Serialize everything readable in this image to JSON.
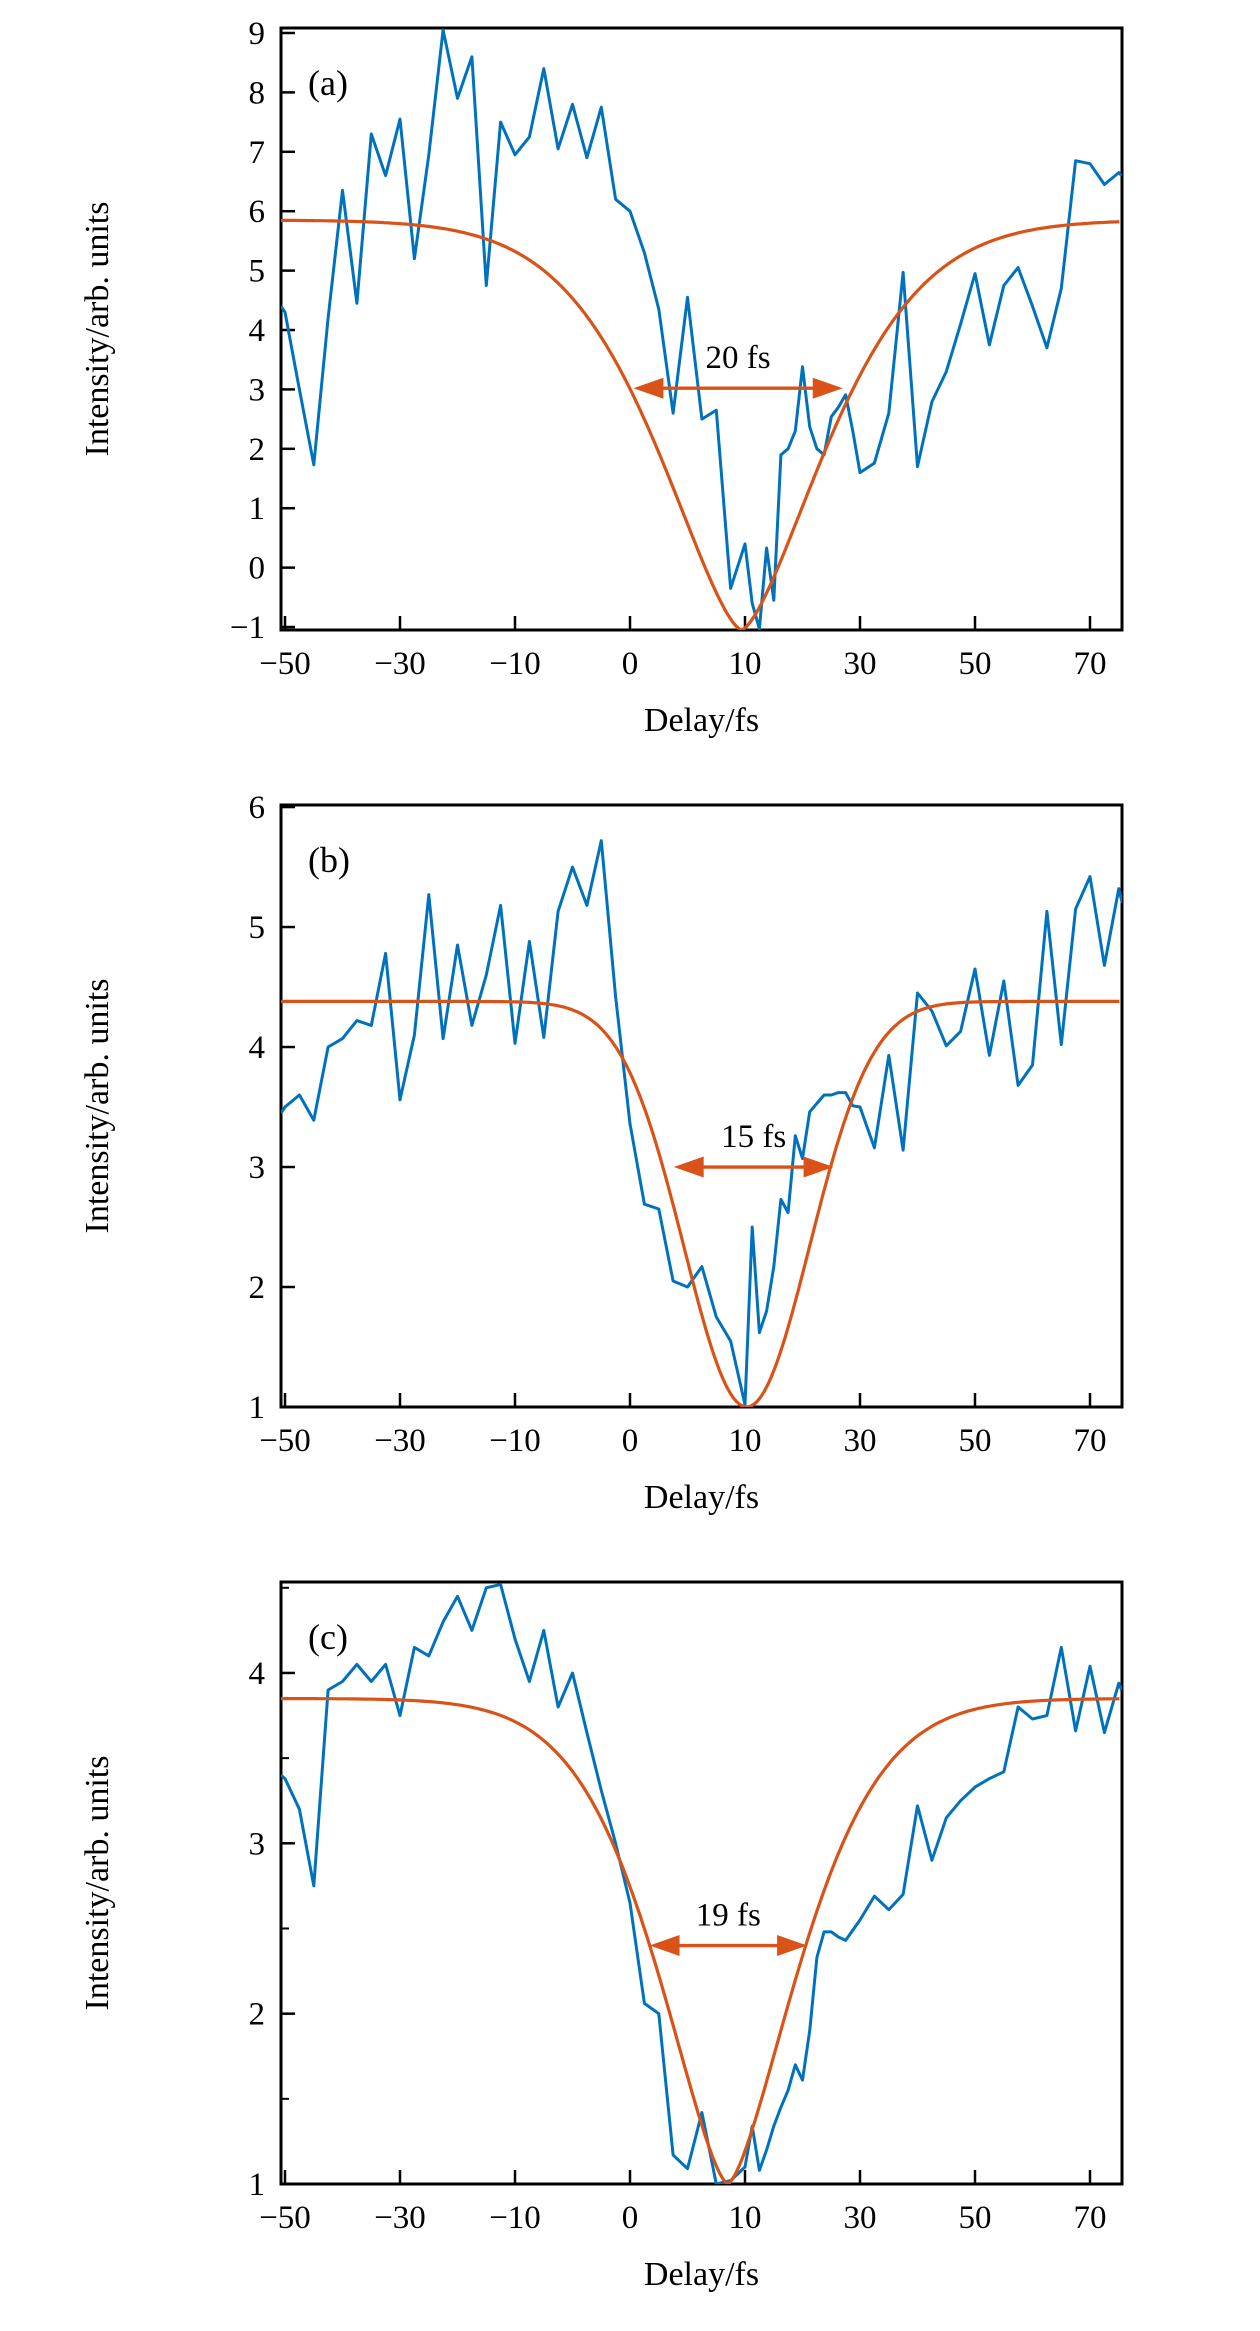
{
  "figure": {
    "type": "three-panel cross-correlation figure",
    "background": "#ffffff"
  },
  "colors": {
    "data_line": "#0072bd",
    "fit_line": "#d95319",
    "annotation": "#d95319",
    "axis": "#000000"
  },
  "x_axis": {
    "label": "Delay/fs",
    "tick_labels": [
      "−50",
      "−30",
      "−10",
      "0",
      "10",
      "30",
      "50",
      "70"
    ],
    "tick_values": [
      -50,
      -30,
      -10,
      0,
      10,
      30,
      50,
      70
    ],
    "note": "ticks equally spaced on axis",
    "range_fs": [
      -50.7,
      75.6
    ]
  },
  "chart_data": [
    {
      "id": "a",
      "type": "line",
      "panel_label": "(a)",
      "ylabel": "Intensity/arb. units",
      "xlabel": "Delay/fs",
      "ylim": [
        -1.05,
        9.084
      ],
      "y_ticks": {
        "labels": [
          "9",
          "8",
          "7",
          "6",
          "5",
          "4",
          "3",
          "2",
          "1",
          "0",
          "−1"
        ],
        "values": [
          9,
          8,
          7,
          6,
          5,
          4,
          3,
          2,
          1,
          0,
          -1
        ],
        "minor_values": []
      },
      "annotation": {
        "text": "20 fs",
        "level": 3.02,
        "from_fs": 0.3,
        "to_fs": 27.0
      },
      "series": [
        {
          "name": "measured signal",
          "color_key": "data_line",
          "points": [
            [
              -50.7,
              4.4
            ],
            [
              -50,
              4.3
            ],
            [
              -47.5,
              3.0
            ],
            [
              -45,
              1.73
            ],
            [
              -42.5,
              4.2
            ],
            [
              -40,
              6.35
            ],
            [
              -37.5,
              4.45
            ],
            [
              -35,
              7.3
            ],
            [
              -32.5,
              6.6
            ],
            [
              -30,
              7.55
            ],
            [
              -27.5,
              5.2
            ],
            [
              -25,
              6.95
            ],
            [
              -22.5,
              9.05
            ],
            [
              -20,
              7.9
            ],
            [
              -17.5,
              8.6
            ],
            [
              -15,
              4.75
            ],
            [
              -12.5,
              7.5
            ],
            [
              -10,
              6.95
            ],
            [
              -8.75,
              7.25
            ],
            [
              -7.5,
              8.4
            ],
            [
              -6.25,
              7.05
            ],
            [
              -5,
              7.8
            ],
            [
              -3.75,
              6.9
            ],
            [
              -2.5,
              7.75
            ],
            [
              -1.25,
              6.2
            ],
            [
              0,
              6.0
            ],
            [
              1.25,
              5.3
            ],
            [
              2.5,
              4.35
            ],
            [
              3.75,
              2.6
            ],
            [
              5,
              4.55
            ],
            [
              6.25,
              2.5
            ],
            [
              7.5,
              2.65
            ],
            [
              8.75,
              -0.35
            ],
            [
              10,
              0.4
            ],
            [
              11.25,
              -0.6
            ],
            [
              12.5,
              -1.03
            ],
            [
              13.75,
              0.33
            ],
            [
              15,
              -0.55
            ],
            [
              16.25,
              1.9
            ],
            [
              17.5,
              2.0
            ],
            [
              18.75,
              2.3
            ],
            [
              20,
              3.38
            ],
            [
              21.25,
              2.37
            ],
            [
              22.5,
              2.0
            ],
            [
              23.75,
              1.9
            ],
            [
              25,
              2.54
            ],
            [
              26.25,
              2.7
            ],
            [
              27.5,
              2.91
            ],
            [
              28.75,
              2.3
            ],
            [
              30,
              1.6
            ],
            [
              32.5,
              1.76
            ],
            [
              35,
              2.6
            ],
            [
              37.5,
              4.97
            ],
            [
              40,
              1.7
            ],
            [
              42.5,
              2.79
            ],
            [
              45,
              3.3
            ],
            [
              47.5,
              4.1
            ],
            [
              50,
              4.95
            ],
            [
              52.5,
              3.75
            ],
            [
              55,
              4.75
            ],
            [
              57.5,
              5.05
            ],
            [
              60,
              4.4
            ],
            [
              62.5,
              3.7
            ],
            [
              65,
              4.7
            ],
            [
              67.5,
              6.85
            ],
            [
              70,
              6.8
            ],
            [
              72.5,
              6.45
            ],
            [
              75,
              6.65
            ],
            [
              75.5,
              6.6
            ]
          ]
        },
        {
          "name": "fit",
          "color_key": "fit_line",
          "fit": {
            "baseline": 5.85,
            "minimum": -1.05,
            "center_delay_fs": 9.7,
            "width_axis_units": 1.05,
            "exponent": 1.5
          }
        }
      ]
    },
    {
      "id": "b",
      "type": "line",
      "panel_label": "(b)",
      "ylabel": "Intensity/arb. units",
      "xlabel": "Delay/fs",
      "ylim": [
        1.0,
        6.017
      ],
      "y_ticks": {
        "labels": [
          "6",
          "5",
          "4",
          "3",
          "2",
          "1"
        ],
        "values": [
          6,
          5,
          4,
          3,
          2,
          1
        ],
        "minor_values": []
      },
      "annotation": {
        "text": "15 fs",
        "level": 3.0,
        "from_fs": 3.8,
        "to_fs": 25.4
      },
      "series": [
        {
          "name": "measured signal",
          "color_key": "data_line",
          "points": [
            [
              -50.7,
              3.45
            ],
            [
              -50,
              3.5
            ],
            [
              -47.5,
              3.6
            ],
            [
              -45,
              3.39
            ],
            [
              -42.5,
              4.0
            ],
            [
              -40,
              4.07
            ],
            [
              -37.5,
              4.22
            ],
            [
              -35,
              4.18
            ],
            [
              -32.5,
              4.78
            ],
            [
              -30,
              3.56
            ],
            [
              -27.5,
              4.1
            ],
            [
              -25,
              5.27
            ],
            [
              -22.5,
              4.07
            ],
            [
              -20,
              4.85
            ],
            [
              -17.5,
              4.18
            ],
            [
              -15,
              4.6
            ],
            [
              -12.5,
              5.18
            ],
            [
              -10,
              4.03
            ],
            [
              -8.75,
              4.88
            ],
            [
              -7.5,
              4.08
            ],
            [
              -6.25,
              5.13
            ],
            [
              -5,
              5.5
            ],
            [
              -3.75,
              5.18
            ],
            [
              -2.5,
              5.72
            ],
            [
              -1.25,
              4.42
            ],
            [
              0,
              3.36
            ],
            [
              1.25,
              2.69
            ],
            [
              2.5,
              2.65
            ],
            [
              3.75,
              2.05
            ],
            [
              5,
              2.0
            ],
            [
              6.25,
              2.17
            ],
            [
              7.5,
              1.75
            ],
            [
              8.75,
              1.55
            ],
            [
              10,
              1.02
            ],
            [
              11.25,
              2.5
            ],
            [
              12.5,
              1.62
            ],
            [
              13.75,
              1.8
            ],
            [
              15,
              2.17
            ],
            [
              16.25,
              2.73
            ],
            [
              17.5,
              2.62
            ],
            [
              18.75,
              3.26
            ],
            [
              20,
              3.07
            ],
            [
              21.25,
              3.46
            ],
            [
              22.5,
              3.53
            ],
            [
              23.75,
              3.6
            ],
            [
              25,
              3.6
            ],
            [
              26.25,
              3.62
            ],
            [
              27.5,
              3.62
            ],
            [
              28.75,
              3.51
            ],
            [
              30,
              3.5
            ],
            [
              32.5,
              3.16
            ],
            [
              35,
              3.93
            ],
            [
              37.5,
              3.14
            ],
            [
              40,
              4.45
            ],
            [
              42.5,
              4.3
            ],
            [
              45,
              4.01
            ],
            [
              47.5,
              4.13
            ],
            [
              50,
              4.65
            ],
            [
              52.5,
              3.93
            ],
            [
              55,
              4.55
            ],
            [
              57.5,
              3.68
            ],
            [
              60,
              3.85
            ],
            [
              62.5,
              5.13
            ],
            [
              65,
              4.02
            ],
            [
              67.5,
              5.15
            ],
            [
              70,
              5.42
            ],
            [
              72.5,
              4.68
            ],
            [
              75,
              5.32
            ],
            [
              75.6,
              5.2
            ]
          ]
        },
        {
          "name": "fit",
          "color_key": "fit_line",
          "fit": {
            "baseline": 4.38,
            "minimum": 1.0,
            "center_delay_fs": 10.3,
            "width_axis_units": 0.77,
            "exponent": 2.0
          }
        }
      ]
    },
    {
      "id": "c",
      "type": "line",
      "panel_label": "(c)",
      "ylabel": "Intensity/arb. units",
      "xlabel": "Delay/fs",
      "ylim": [
        1.0,
        4.534
      ],
      "y_ticks": {
        "labels": [
          "4",
          "3",
          "2",
          "1"
        ],
        "values": [
          4,
          3,
          2,
          1
        ],
        "minor_values": [
          4.5,
          3.5,
          2.5,
          1.5
        ]
      },
      "annotation": {
        "text": "19 fs",
        "level": 2.4,
        "from_fs": 1.7,
        "to_fs": 20.8
      },
      "series": [
        {
          "name": "measured signal",
          "color_key": "data_line",
          "points": [
            [
              -50.7,
              3.4
            ],
            [
              -50,
              3.38
            ],
            [
              -47.5,
              3.2
            ],
            [
              -45,
              2.75
            ],
            [
              -42.5,
              3.9
            ],
            [
              -40,
              3.95
            ],
            [
              -37.5,
              4.05
            ],
            [
              -35,
              3.95
            ],
            [
              -32.5,
              4.05
            ],
            [
              -30,
              3.75
            ],
            [
              -27.5,
              4.15
            ],
            [
              -25,
              4.1
            ],
            [
              -22.5,
              4.3
            ],
            [
              -20,
              4.45
            ],
            [
              -17.5,
              4.25
            ],
            [
              -15,
              4.5
            ],
            [
              -12.5,
              4.52
            ],
            [
              -10,
              4.2
            ],
            [
              -8.75,
              3.95
            ],
            [
              -7.5,
              4.25
            ],
            [
              -6.25,
              3.8
            ],
            [
              -5,
              4.0
            ],
            [
              -3.75,
              3.65
            ],
            [
              -2.5,
              3.31
            ],
            [
              -1.25,
              3.0
            ],
            [
              0,
              2.65
            ],
            [
              1.25,
              2.06
            ],
            [
              2.5,
              2.0
            ],
            [
              3.75,
              1.17
            ],
            [
              5,
              1.09
            ],
            [
              6.25,
              1.42
            ],
            [
              7.5,
              1.0
            ],
            [
              8.75,
              1.02
            ],
            [
              10,
              1.1
            ],
            [
              11.25,
              1.34
            ],
            [
              12.5,
              1.08
            ],
            [
              13.75,
              1.2
            ],
            [
              15,
              1.34
            ],
            [
              16.25,
              1.45
            ],
            [
              17.5,
              1.55
            ],
            [
              18.75,
              1.7
            ],
            [
              20,
              1.61
            ],
            [
              21.25,
              1.9
            ],
            [
              22.5,
              2.33
            ],
            [
              23.75,
              2.48
            ],
            [
              25,
              2.48
            ],
            [
              26.25,
              2.45
            ],
            [
              27.5,
              2.43
            ],
            [
              30,
              2.55
            ],
            [
              32.5,
              2.69
            ],
            [
              35,
              2.61
            ],
            [
              37.5,
              2.7
            ],
            [
              40,
              3.22
            ],
            [
              42.5,
              2.9
            ],
            [
              45,
              3.15
            ],
            [
              47.5,
              3.25
            ],
            [
              50,
              3.33
            ],
            [
              52.5,
              3.38
            ],
            [
              55,
              3.42
            ],
            [
              57.5,
              3.8
            ],
            [
              60,
              3.73
            ],
            [
              62.5,
              3.75
            ],
            [
              65,
              4.15
            ],
            [
              67.5,
              3.66
            ],
            [
              70,
              4.04
            ],
            [
              72.5,
              3.65
            ],
            [
              75,
              3.94
            ],
            [
              75.5,
              3.9
            ]
          ]
        },
        {
          "name": "fit",
          "color_key": "fit_line",
          "fit": {
            "baseline": 3.85,
            "minimum": 1.0,
            "center_delay_fs": 8.5,
            "width_axis_units": 0.881,
            "exponent": 1.5
          }
        }
      ]
    }
  ]
}
